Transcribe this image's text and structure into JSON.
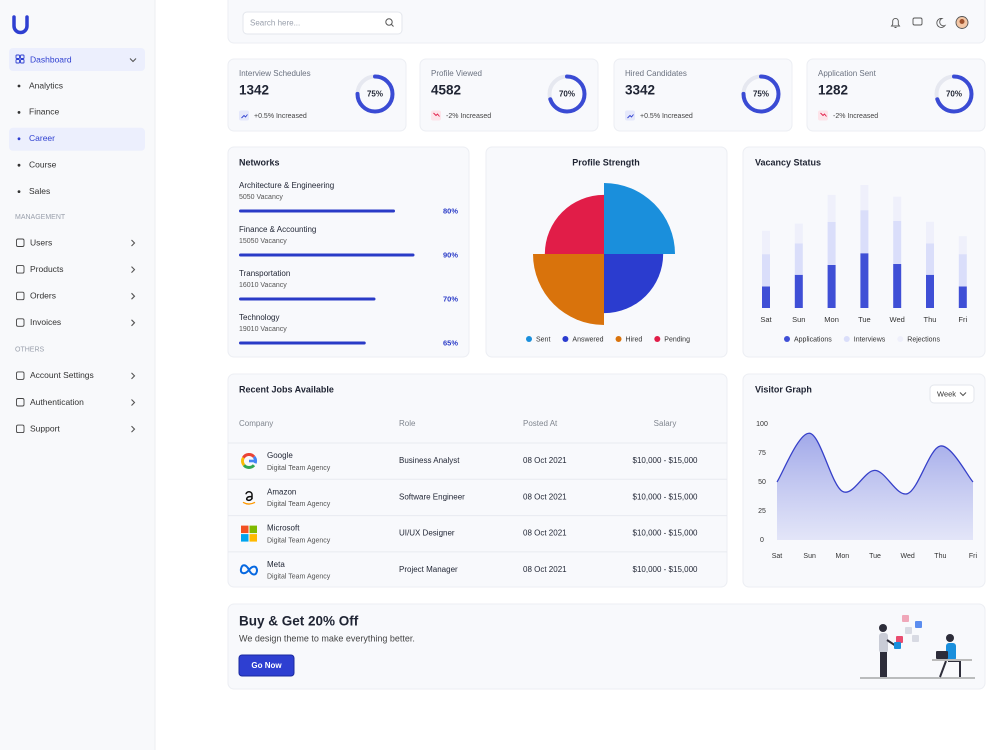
{
  "sidebar": {
    "menu": {
      "label": "Dashboard",
      "children": [
        "Analytics",
        "Finance",
        "Career",
        "Course",
        "Sales"
      ],
      "active_child": 2
    },
    "sections": [
      {
        "heading": "MANAGEMENT",
        "items": [
          "Users",
          "Products",
          "Orders",
          "Invoices"
        ]
      },
      {
        "heading": "OTHERS",
        "items": [
          "Account Settings",
          "Authentication",
          "Support"
        ]
      }
    ]
  },
  "header": {
    "search_placeholder": "Search here..."
  },
  "stats": [
    {
      "title": "Interview Schedules",
      "value": 1342,
      "ring": {
        "value": 75,
        "label": "75%"
      },
      "change": "+0.5% Increased",
      "trend": "up"
    },
    {
      "title": "Profile Viewed",
      "value": 4582,
      "ring": {
        "value": 70,
        "label": "70%"
      },
      "change": "-2% Increased",
      "trend": "down"
    },
    {
      "title": "Hired Candidates",
      "value": 3342,
      "ring": {
        "value": 75,
        "label": "75%"
      },
      "change": "+0.5% Increased",
      "trend": "up"
    },
    {
      "title": "Application Sent",
      "value": 1282,
      "ring": {
        "value": 70,
        "label": "70%"
      },
      "change": "-2% Increased",
      "trend": "down"
    }
  ],
  "networks": {
    "title": "Networks",
    "items": [
      {
        "name": "Architecture & Engineering",
        "vacancy": "5050 Vacancy",
        "progress": {
          "value": 80,
          "label": "80%"
        }
      },
      {
        "name": "Finance & Accounting",
        "vacancy": "15050 Vacancy",
        "progress": {
          "value": 90,
          "label": "90%"
        }
      },
      {
        "name": "Transportation",
        "vacancy": "16010 Vacancy",
        "progress": {
          "value": 70,
          "label": "70%"
        }
      },
      {
        "name": "Technology",
        "vacancy": "19010 Vacancy",
        "progress": {
          "value": 65,
          "label": "65%"
        }
      }
    ]
  },
  "profile_strength": {
    "type": "polar-area",
    "title": "Profile Strength",
    "categories": [
      "Sent",
      "Answered",
      "Hired",
      "Pending"
    ],
    "values": [
      60,
      50,
      60,
      50
    ],
    "colors": [
      "#1a8fdc",
      "#2b3ccf",
      "#d9730c",
      "#e11d48"
    ]
  },
  "vacancy_status": {
    "type": "stacked-bar",
    "title": "Vacancy Status",
    "categories": [
      "Sat",
      "Sun",
      "Mon",
      "Tue",
      "Wed",
      "Thu",
      "Fri"
    ],
    "series": [
      {
        "name": "Applications",
        "color": "#3f4fd6",
        "values": [
          24,
          37,
          48,
          61,
          49,
          37,
          24
        ]
      },
      {
        "name": "Interviews",
        "color": "#dadefa",
        "values": [
          36,
          35,
          48,
          48,
          48,
          35,
          36
        ]
      },
      {
        "name": "Rejections",
        "color": "#eff0fb",
        "values": [
          26,
          22,
          30,
          28,
          27,
          24,
          20
        ]
      }
    ]
  },
  "jobs": {
    "title": "Recent Jobs Available",
    "columns": [
      "Company",
      "Role",
      "Posted At",
      "Salary"
    ],
    "rows": [
      {
        "company": "Google",
        "agency": "Digital Team Agency",
        "role": "Business Analyst",
        "posted": "08 Oct 2021",
        "salary": "$10,000 - $15,000"
      },
      {
        "company": "Amazon",
        "agency": "Digital Team Agency",
        "role": "Software Engineer",
        "posted": "08 Oct 2021",
        "salary": "$10,000 - $15,000"
      },
      {
        "company": "Microsoft",
        "agency": "Digital Team Agency",
        "role": "UI/UX Designer",
        "posted": "08 Oct 2021",
        "salary": "$10,000 - $15,000"
      },
      {
        "company": "Meta",
        "agency": "Digital Team Agency",
        "role": "Project Manager",
        "posted": "08 Oct 2021",
        "salary": "$10,000 - $15,000"
      }
    ]
  },
  "visitor_graph": {
    "type": "area",
    "title": "Visitor Graph",
    "filter": "Week",
    "categories": [
      "Sat",
      "Sun",
      "Mon",
      "Tue",
      "Wed",
      "Thu",
      "Fri"
    ],
    "values": [
      50,
      92,
      42,
      60,
      40,
      81,
      50
    ],
    "ylim": [
      0,
      100
    ],
    "yticks": [
      0,
      25,
      50,
      75,
      100
    ],
    "color": "#3640c9"
  },
  "promo": {
    "title": "Buy & Get 20% Off",
    "subtitle": "We design theme to make everything better.",
    "button": "Go Now"
  }
}
